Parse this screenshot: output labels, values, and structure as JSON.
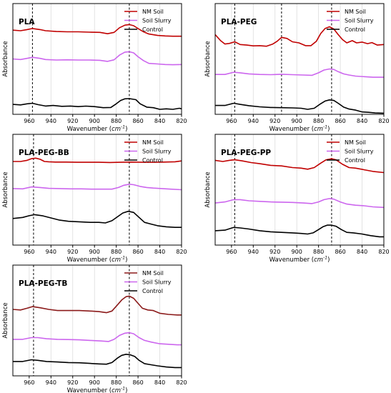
{
  "figure": {
    "x_tick_labels": [
      "960",
      "940",
      "920",
      "900",
      "880",
      "860",
      "840",
      "820"
    ],
    "x_label_prefix": "Wavenumber (",
    "x_label_unit": "cm",
    "x_label_exp": "-1",
    "x_label_suffix": ")",
    "y_label": "Absorbance"
  },
  "chart_data": [
    {
      "type": "line",
      "title": "PLA",
      "xlabel": "Wavenumber (cm-1)",
      "ylabel": "Absorbance",
      "xlim": [
        975,
        820
      ],
      "x_reversed": true,
      "y_ticks": false,
      "ylim": [
        0,
        1
      ],
      "grid": "vertical",
      "legend": "top-right",
      "vlines": [
        957,
        868
      ],
      "series": [
        {
          "name": "NM Soil",
          "color": "#c00000",
          "x": [
            975,
            968,
            962,
            957,
            950,
            945,
            935,
            925,
            915,
            905,
            895,
            888,
            882,
            877,
            872,
            868,
            864,
            860,
            855,
            850,
            842,
            835,
            828,
            820
          ],
          "y": [
            0.76,
            0.755,
            0.765,
            0.775,
            0.765,
            0.755,
            0.748,
            0.745,
            0.745,
            0.742,
            0.74,
            0.728,
            0.74,
            0.782,
            0.805,
            0.81,
            0.8,
            0.775,
            0.745,
            0.725,
            0.712,
            0.708,
            0.705,
            0.705
          ]
        },
        {
          "name": "Soil Slurry",
          "color": "#cc66ee",
          "x": [
            975,
            968,
            962,
            957,
            950,
            945,
            935,
            925,
            915,
            905,
            895,
            888,
            882,
            877,
            872,
            868,
            864,
            860,
            855,
            850,
            842,
            835,
            828,
            820
          ],
          "y": [
            0.5,
            0.495,
            0.505,
            0.515,
            0.505,
            0.495,
            0.49,
            0.492,
            0.49,
            0.49,
            0.488,
            0.478,
            0.492,
            0.535,
            0.562,
            0.565,
            0.555,
            0.52,
            0.485,
            0.46,
            0.455,
            0.45,
            0.448,
            0.45
          ]
        },
        {
          "name": "Control",
          "color": "#000000",
          "x": [
            975,
            968,
            962,
            957,
            952,
            945,
            938,
            930,
            922,
            915,
            908,
            900,
            892,
            885,
            880,
            876,
            872,
            868,
            862,
            858,
            852,
            846,
            840,
            834,
            828,
            822,
            820
          ],
          "y": [
            0.09,
            0.085,
            0.095,
            0.1,
            0.088,
            0.075,
            0.08,
            0.072,
            0.075,
            0.07,
            0.074,
            0.07,
            0.06,
            0.062,
            0.095,
            0.125,
            0.14,
            0.142,
            0.132,
            0.095,
            0.065,
            0.06,
            0.045,
            0.05,
            0.045,
            0.055,
            0.05
          ]
        }
      ]
    },
    {
      "type": "line",
      "title": "PLA-PEG",
      "xlabel": "Wavenumber (cm-1)",
      "ylabel": "Absorbance",
      "xlim": [
        975,
        820
      ],
      "x_reversed": true,
      "y_ticks": false,
      "ylim": [
        0,
        1
      ],
      "grid": "vertical",
      "legend": "top-right",
      "vlines": [
        957,
        914,
        868
      ],
      "series": [
        {
          "name": "NM Soil",
          "color": "#c00000",
          "x": [
            975,
            970,
            966,
            962,
            957,
            952,
            946,
            940,
            934,
            928,
            922,
            918,
            914,
            909,
            904,
            898,
            892,
            887,
            882,
            878,
            874,
            870,
            866,
            862,
            858,
            854,
            849,
            845,
            840,
            835,
            831,
            826,
            820
          ],
          "y": [
            0.72,
            0.665,
            0.635,
            0.64,
            0.655,
            0.63,
            0.625,
            0.618,
            0.62,
            0.615,
            0.635,
            0.66,
            0.695,
            0.685,
            0.655,
            0.645,
            0.62,
            0.62,
            0.66,
            0.73,
            0.775,
            0.79,
            0.77,
            0.72,
            0.675,
            0.645,
            0.665,
            0.645,
            0.652,
            0.638,
            0.648,
            0.625,
            0.63
          ]
        },
        {
          "name": "Soil Slurry",
          "color": "#cc66ee",
          "x": [
            975,
            966,
            958,
            952,
            944,
            934,
            924,
            914,
            904,
            894,
            886,
            880,
            875,
            870,
            866,
            862,
            857,
            852,
            846,
            838,
            830,
            820
          ],
          "y": [
            0.36,
            0.36,
            0.38,
            0.375,
            0.365,
            0.36,
            0.358,
            0.362,
            0.358,
            0.355,
            0.352,
            0.375,
            0.4,
            0.41,
            0.405,
            0.385,
            0.365,
            0.355,
            0.345,
            0.34,
            0.335,
            0.335
          ]
        },
        {
          "name": "Control",
          "color": "#000000",
          "x": [
            975,
            966,
            958,
            952,
            944,
            934,
            924,
            914,
            904,
            896,
            890,
            884,
            879,
            874,
            870,
            866,
            862,
            857,
            852,
            846,
            840,
            834,
            828,
            820
          ],
          "y": [
            0.08,
            0.08,
            0.1,
            0.09,
            0.078,
            0.068,
            0.062,
            0.06,
            0.058,
            0.055,
            0.045,
            0.055,
            0.09,
            0.12,
            0.13,
            0.125,
            0.1,
            0.065,
            0.048,
            0.038,
            0.022,
            0.018,
            0.012,
            0.01
          ]
        }
      ]
    },
    {
      "type": "line",
      "title": "PLA-PEG-BB",
      "xlabel": "Wavenumber (cm-1)",
      "ylabel": "Absorbance",
      "xlim": [
        975,
        820
      ],
      "x_reversed": true,
      "y_ticks": false,
      "ylim": [
        0,
        1
      ],
      "grid": "vertical",
      "legend": "top-right",
      "vlines": [
        956,
        868
      ],
      "series": [
        {
          "name": "NM Soil",
          "color": "#c00000",
          "x": [
            975,
            968,
            962,
            958,
            954,
            950,
            946,
            942,
            936,
            926,
            916,
            906,
            896,
            886,
            876,
            866,
            856,
            846,
            836,
            826,
            820
          ],
          "y": [
            0.755,
            0.755,
            0.765,
            0.78,
            0.785,
            0.775,
            0.755,
            0.752,
            0.75,
            0.75,
            0.748,
            0.748,
            0.748,
            0.746,
            0.748,
            0.75,
            0.748,
            0.748,
            0.75,
            0.752,
            0.76
          ]
        },
        {
          "name": "Soil Slurry",
          "color": "#cc66ee",
          "x": [
            975,
            966,
            958,
            950,
            942,
            932,
            922,
            912,
            902,
            892,
            884,
            878,
            873,
            868,
            864,
            858,
            852,
            846,
            838,
            830,
            820
          ],
          "y": [
            0.51,
            0.508,
            0.525,
            0.52,
            0.512,
            0.51,
            0.508,
            0.508,
            0.505,
            0.505,
            0.505,
            0.52,
            0.54,
            0.55,
            0.545,
            0.53,
            0.52,
            0.515,
            0.51,
            0.505,
            0.5
          ]
        },
        {
          "name": "Control",
          "color": "#000000",
          "x": [
            975,
            966,
            960,
            955,
            948,
            940,
            932,
            924,
            914,
            904,
            896,
            890,
            884,
            879,
            874,
            869,
            864,
            859,
            854,
            848,
            842,
            834,
            826,
            820
          ],
          "y": [
            0.24,
            0.25,
            0.265,
            0.275,
            0.265,
            0.245,
            0.225,
            0.215,
            0.21,
            0.205,
            0.205,
            0.2,
            0.22,
            0.255,
            0.29,
            0.305,
            0.295,
            0.25,
            0.205,
            0.19,
            0.175,
            0.165,
            0.16,
            0.16
          ]
        }
      ]
    },
    {
      "type": "line",
      "title": "PLA-PEG-PP",
      "xlabel": "Wavenumber (cm-1)",
      "ylabel": "Absorbance",
      "xlim": [
        975,
        820
      ],
      "x_reversed": true,
      "y_ticks": false,
      "ylim": [
        0,
        1
      ],
      "grid": "vertical",
      "legend": "top-right",
      "vlines": [
        957,
        868
      ],
      "series": [
        {
          "name": "NM Soil",
          "color": "#c00000",
          "x": [
            975,
            968,
            962,
            957,
            950,
            942,
            934,
            924,
            914,
            904,
            896,
            890,
            884,
            878,
            873,
            868,
            864,
            858,
            852,
            846,
            838,
            830,
            820
          ],
          "y": [
            0.765,
            0.755,
            0.765,
            0.77,
            0.76,
            0.745,
            0.735,
            0.72,
            0.715,
            0.7,
            0.695,
            0.685,
            0.7,
            0.74,
            0.77,
            0.78,
            0.77,
            0.73,
            0.7,
            0.695,
            0.68,
            0.665,
            0.655
          ]
        },
        {
          "name": "Soil Slurry",
          "color": "#cc66ee",
          "x": [
            975,
            966,
            958,
            952,
            944,
            934,
            924,
            914,
            904,
            894,
            886,
            880,
            875,
            870,
            866,
            860,
            854,
            846,
            838,
            830,
            820
          ],
          "y": [
            0.38,
            0.39,
            0.41,
            0.41,
            0.4,
            0.395,
            0.39,
            0.388,
            0.385,
            0.38,
            0.375,
            0.39,
            0.41,
            0.42,
            0.415,
            0.39,
            0.37,
            0.36,
            0.355,
            0.345,
            0.34
          ]
        },
        {
          "name": "Control",
          "color": "#000000",
          "x": [
            975,
            966,
            958,
            952,
            944,
            934,
            924,
            914,
            904,
            896,
            890,
            885,
            880,
            876,
            872,
            868,
            864,
            859,
            854,
            848,
            840,
            832,
            824,
            820
          ],
          "y": [
            0.13,
            0.135,
            0.16,
            0.155,
            0.145,
            0.13,
            0.12,
            0.115,
            0.11,
            0.105,
            0.1,
            0.11,
            0.14,
            0.165,
            0.18,
            0.18,
            0.17,
            0.14,
            0.115,
            0.11,
            0.1,
            0.085,
            0.075,
            0.075
          ]
        }
      ]
    },
    {
      "type": "line",
      "title": "PLA-PEG-TB",
      "xlabel": "Wavenumber (cm-1)",
      "ylabel": "Absorbance",
      "xlim": [
        975,
        820
      ],
      "x_reversed": true,
      "y_ticks": false,
      "ylim": [
        0,
        1
      ],
      "grid": "vertical",
      "legend": "top-right",
      "vlines": [
        956,
        868
      ],
      "series": [
        {
          "name": "NM Soil",
          "color": "#8b1a1a",
          "x": [
            975,
            968,
            962,
            957,
            950,
            942,
            934,
            924,
            914,
            904,
            896,
            889,
            884,
            879,
            875,
            871,
            868,
            864,
            860,
            856,
            851,
            846,
            840,
            832,
            824,
            820
          ],
          "y": [
            0.6,
            0.595,
            0.61,
            0.625,
            0.615,
            0.6,
            0.59,
            0.59,
            0.59,
            0.585,
            0.58,
            0.57,
            0.585,
            0.64,
            0.685,
            0.715,
            0.72,
            0.7,
            0.655,
            0.61,
            0.595,
            0.59,
            0.565,
            0.555,
            0.55,
            0.55
          ]
        },
        {
          "name": "Soil Slurry",
          "color": "#cc66ee",
          "x": [
            975,
            966,
            958,
            952,
            944,
            934,
            924,
            914,
            904,
            894,
            887,
            882,
            877,
            872,
            868,
            864,
            859,
            854,
            848,
            840,
            832,
            824,
            820
          ],
          "y": [
            0.33,
            0.33,
            0.345,
            0.345,
            0.335,
            0.33,
            0.328,
            0.325,
            0.32,
            0.315,
            0.31,
            0.33,
            0.365,
            0.385,
            0.39,
            0.38,
            0.345,
            0.32,
            0.305,
            0.29,
            0.285,
            0.28,
            0.28
          ]
        },
        {
          "name": "Control",
          "color": "#000000",
          "x": [
            975,
            966,
            958,
            952,
            944,
            934,
            924,
            914,
            904,
            896,
            889,
            884,
            879,
            875,
            871,
            867,
            863,
            859,
            854,
            848,
            842,
            834,
            826,
            820
          ],
          "y": [
            0.13,
            0.13,
            0.145,
            0.14,
            0.13,
            0.125,
            0.12,
            0.118,
            0.112,
            0.108,
            0.105,
            0.12,
            0.16,
            0.185,
            0.195,
            0.19,
            0.175,
            0.14,
            0.11,
            0.1,
            0.09,
            0.08,
            0.075,
            0.075
          ]
        }
      ]
    }
  ]
}
